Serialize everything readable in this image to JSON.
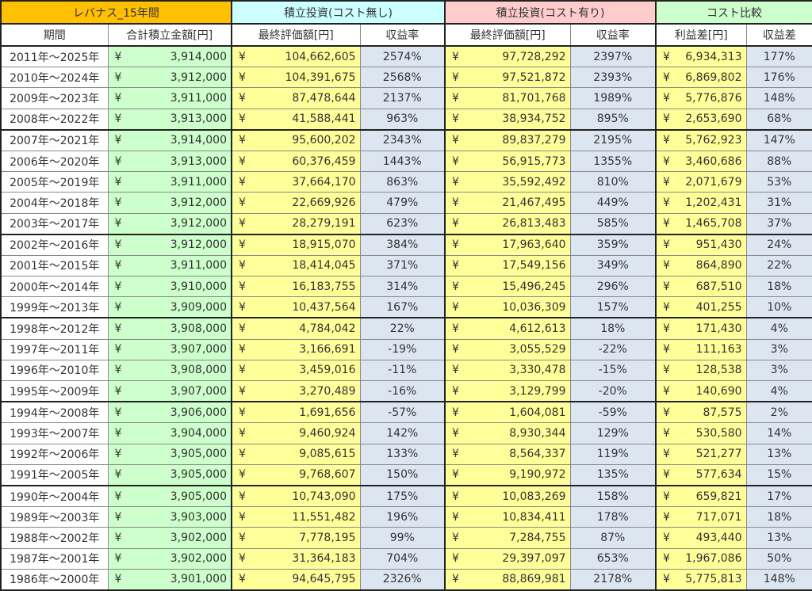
{
  "colors": {
    "header_fund": "#ffc000",
    "header_nocost": "#ccffff",
    "header_cost": "#ffcccc",
    "header_compare": "#ccffcc",
    "green": "#ccffcc",
    "yellow": "#ffff99",
    "blue": "#dce6f1"
  },
  "groups": {
    "fund": "レバナス_15年間",
    "nocost": "積立投資(コスト無し)",
    "cost": "積立投資(コスト有り)",
    "compare": "コスト比較"
  },
  "columns": {
    "period": "期間",
    "total": "合計積立金額[円]",
    "final_nocost": "最終評価額[円]",
    "rate_nocost": "収益率",
    "final_cost": "最終評価額[円]",
    "rate_cost": "収益率",
    "profit_diff": "利益差[円]",
    "rate_diff": "収益差"
  },
  "currency": "¥",
  "rows": [
    [
      "2011年～2025年",
      "3,914,000",
      "104,662,605",
      "2574%",
      "97,728,292",
      "2397%",
      "6,934,313",
      "177%"
    ],
    [
      "2010年～2024年",
      "3,912,000",
      "104,391,675",
      "2568%",
      "97,521,872",
      "2393%",
      "6,869,802",
      "176%"
    ],
    [
      "2009年～2023年",
      "3,911,000",
      "87,478,644",
      "2137%",
      "81,701,768",
      "1989%",
      "5,776,876",
      "148%"
    ],
    [
      "2008年～2022年",
      "3,913,000",
      "41,588,441",
      "963%",
      "38,934,752",
      "895%",
      "2,653,690",
      "68%"
    ],
    [
      "2007年～2021年",
      "3,914,000",
      "95,600,202",
      "2343%",
      "89,837,279",
      "2195%",
      "5,762,923",
      "147%"
    ],
    [
      "2006年～2020年",
      "3,913,000",
      "60,376,459",
      "1443%",
      "56,915,773",
      "1355%",
      "3,460,686",
      "88%"
    ],
    [
      "2005年～2019年",
      "3,911,000",
      "37,664,170",
      "863%",
      "35,592,492",
      "810%",
      "2,071,679",
      "53%"
    ],
    [
      "2004年～2018年",
      "3,912,000",
      "22,669,926",
      "479%",
      "21,467,495",
      "449%",
      "1,202,431",
      "31%"
    ],
    [
      "2003年～2017年",
      "3,912,000",
      "28,279,191",
      "623%",
      "26,813,483",
      "585%",
      "1,465,708",
      "37%"
    ],
    [
      "2002年～2016年",
      "3,912,000",
      "18,915,070",
      "384%",
      "17,963,640",
      "359%",
      "951,430",
      "24%"
    ],
    [
      "2001年～2015年",
      "3,911,000",
      "18,414,045",
      "371%",
      "17,549,156",
      "349%",
      "864,890",
      "22%"
    ],
    [
      "2000年～2014年",
      "3,910,000",
      "16,183,755",
      "314%",
      "15,496,245",
      "296%",
      "687,510",
      "18%"
    ],
    [
      "1999年～2013年",
      "3,909,000",
      "10,437,564",
      "167%",
      "10,036,309",
      "157%",
      "401,255",
      "10%"
    ],
    [
      "1998年～2012年",
      "3,908,000",
      "4,784,042",
      "22%",
      "4,612,613",
      "18%",
      "171,430",
      "4%"
    ],
    [
      "1997年～2011年",
      "3,907,000",
      "3,166,691",
      "-19%",
      "3,055,529",
      "-22%",
      "111,163",
      "3%"
    ],
    [
      "1996年～2010年",
      "3,908,000",
      "3,459,016",
      "-11%",
      "3,330,478",
      "-15%",
      "128,538",
      "3%"
    ],
    [
      "1995年～2009年",
      "3,907,000",
      "3,270,489",
      "-16%",
      "3,129,799",
      "-20%",
      "140,690",
      "4%"
    ],
    [
      "1994年～2008年",
      "3,906,000",
      "1,691,656",
      "-57%",
      "1,604,081",
      "-59%",
      "87,575",
      "2%"
    ],
    [
      "1993年～2007年",
      "3,904,000",
      "9,460,924",
      "142%",
      "8,930,344",
      "129%",
      "530,580",
      "14%"
    ],
    [
      "1992年～2006年",
      "3,905,000",
      "9,085,615",
      "133%",
      "8,564,337",
      "119%",
      "521,277",
      "13%"
    ],
    [
      "1991年～2005年",
      "3,905,000",
      "9,768,607",
      "150%",
      "9,190,972",
      "135%",
      "577,634",
      "15%"
    ],
    [
      "1990年～2004年",
      "3,905,000",
      "10,743,090",
      "175%",
      "10,083,269",
      "158%",
      "659,821",
      "17%"
    ],
    [
      "1989年～2003年",
      "3,903,000",
      "11,551,482",
      "196%",
      "10,834,411",
      "178%",
      "717,071",
      "18%"
    ],
    [
      "1988年～2002年",
      "3,902,000",
      "7,778,195",
      "99%",
      "7,284,755",
      "87%",
      "493,440",
      "13%"
    ],
    [
      "1987年～2001年",
      "3,902,000",
      "31,364,183",
      "704%",
      "29,397,097",
      "653%",
      "1,967,086",
      "50%"
    ],
    [
      "1986年～2000年",
      "3,901,000",
      "94,645,795",
      "2326%",
      "88,869,981",
      "2178%",
      "5,775,813",
      "148%"
    ]
  ]
}
